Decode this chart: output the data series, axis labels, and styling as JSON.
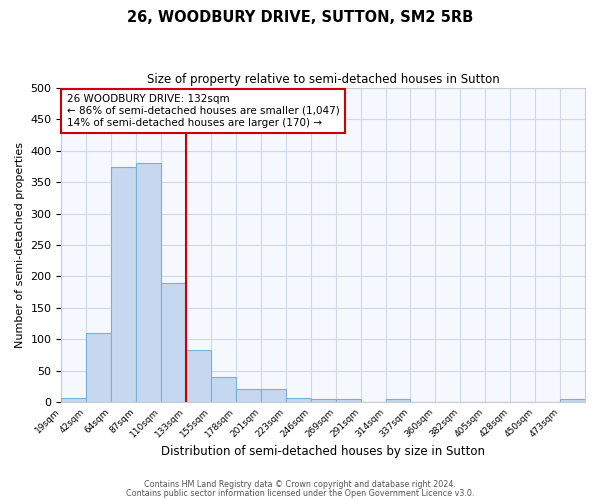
{
  "title": "26, WOODBURY DRIVE, SUTTON, SM2 5RB",
  "subtitle": "Size of property relative to semi-detached houses in Sutton",
  "xlabel": "Distribution of semi-detached houses by size in Sutton",
  "ylabel": "Number of semi-detached properties",
  "bin_labels": [
    "19sqm",
    "42sqm",
    "64sqm",
    "87sqm",
    "110sqm",
    "133sqm",
    "155sqm",
    "178sqm",
    "201sqm",
    "223sqm",
    "246sqm",
    "269sqm",
    "291sqm",
    "314sqm",
    "337sqm",
    "360sqm",
    "382sqm",
    "405sqm",
    "428sqm",
    "450sqm",
    "473sqm"
  ],
  "bin_values": [
    7,
    110,
    375,
    380,
    190,
    83,
    40,
    20,
    20,
    6,
    5,
    5,
    0,
    4,
    0,
    0,
    0,
    0,
    0,
    0,
    4
  ],
  "bar_color": "#c5d8f0",
  "bar_edge_color": "#7bafd4",
  "vline_x_index": 5,
  "vline_color": "#cc0000",
  "annotation_title": "26 WOODBURY DRIVE: 132sqm",
  "annotation_line1": "← 86% of semi-detached houses are smaller (1,047)",
  "annotation_line2": "14% of semi-detached houses are larger (170) →",
  "annotation_box_color": "#ffffff",
  "annotation_box_edge": "#cc0000",
  "ylim": [
    0,
    500
  ],
  "yticks": [
    0,
    50,
    100,
    150,
    200,
    250,
    300,
    350,
    400,
    450,
    500
  ],
  "footer1": "Contains HM Land Registry data © Crown copyright and database right 2024.",
  "footer2": "Contains public sector information licensed under the Open Government Licence v3.0.",
  "bg_color": "#ffffff",
  "plot_bg_color": "#f5f8ff",
  "grid_color": "#d0d8e8"
}
